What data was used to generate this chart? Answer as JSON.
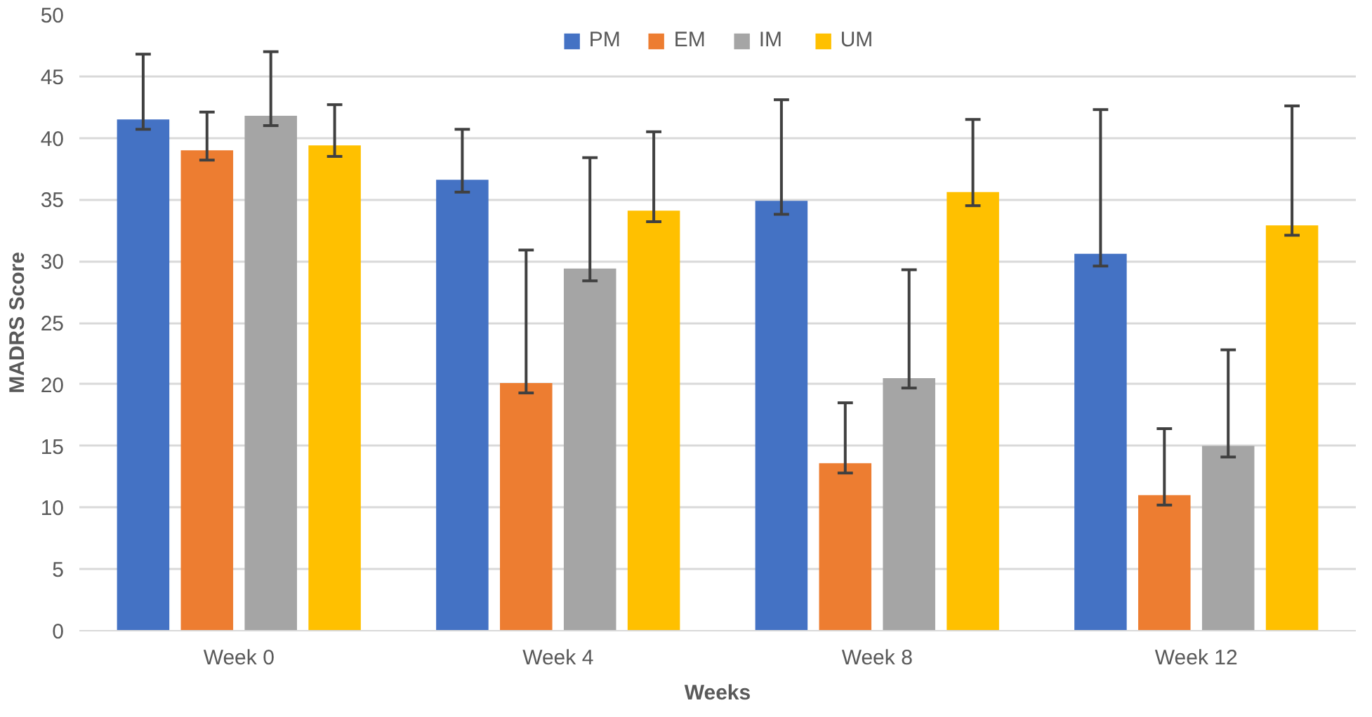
{
  "chart_data": {
    "type": "bar",
    "xlabel": "Weeks",
    "ylabel": "MADRS Score",
    "categories": [
      "Week 0",
      "Week 4",
      "Week 8",
      "Week 12"
    ],
    "ylim": [
      0,
      50
    ],
    "yticks": [
      0,
      5,
      10,
      15,
      20,
      25,
      30,
      35,
      40,
      45,
      50
    ],
    "grid": "y",
    "legend": "top",
    "series": [
      {
        "name": "PM",
        "color": "#4472c4",
        "values": [
          41.5,
          36.6,
          34.9,
          30.6
        ],
        "errors": [
          [
            40.7,
            46.8
          ],
          [
            35.6,
            40.7
          ],
          [
            33.8,
            43.1
          ],
          [
            29.6,
            42.3
          ]
        ]
      },
      {
        "name": "EM",
        "color": "#ed7d31",
        "values": [
          39.0,
          20.1,
          13.6,
          11.0
        ],
        "errors": [
          [
            38.2,
            42.1
          ],
          [
            19.3,
            30.9
          ],
          [
            12.8,
            18.5
          ],
          [
            10.2,
            16.4
          ]
        ]
      },
      {
        "name": "IM",
        "color": "#a5a5a5",
        "values": [
          41.8,
          29.4,
          20.5,
          15.0
        ],
        "errors": [
          [
            41.0,
            47.0
          ],
          [
            28.4,
            38.4
          ],
          [
            19.7,
            29.3
          ],
          [
            14.1,
            22.8
          ]
        ]
      },
      {
        "name": "UM",
        "color": "#ffc000",
        "values": [
          39.4,
          34.1,
          35.6,
          32.9
        ],
        "errors": [
          [
            38.5,
            42.7
          ],
          [
            33.2,
            40.5
          ],
          [
            34.5,
            41.5
          ],
          [
            32.1,
            42.6
          ]
        ]
      }
    ]
  }
}
